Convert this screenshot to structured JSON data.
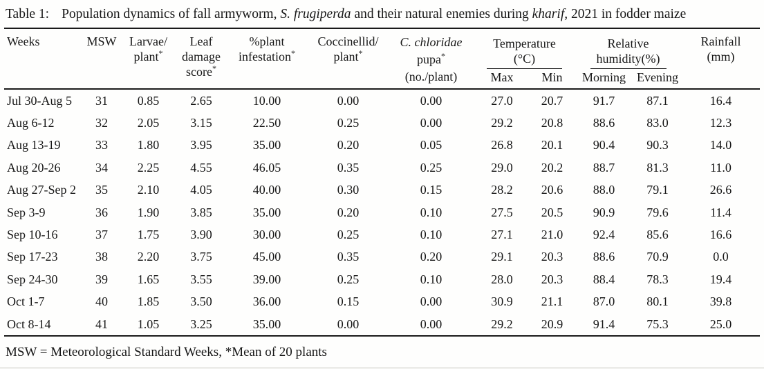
{
  "caption": {
    "label": "Table 1:",
    "segments": [
      {
        "text": "Population dynamics of fall armyworm, ",
        "italic": false
      },
      {
        "text": "S. frugiperda",
        "italic": true
      },
      {
        "text": " and their natural enemies during ",
        "italic": false
      },
      {
        "text": "kharif,",
        "italic": true
      },
      {
        "text": " 2021 in fodder maize",
        "italic": false
      }
    ]
  },
  "header": {
    "simple_columns": [
      {
        "id": "weeks",
        "lines": [
          "Weeks"
        ]
      },
      {
        "id": "msw",
        "lines": [
          "MSW"
        ]
      },
      {
        "id": "larvae-per-plant",
        "lines": [
          "Larvae/",
          "plant*"
        ]
      },
      {
        "id": "leaf-damage-score",
        "lines": [
          "Leaf",
          "damage",
          "score*"
        ]
      },
      {
        "id": "percent-plant-infestation",
        "lines": [
          "%plant",
          "infestation*"
        ]
      },
      {
        "id": "coccinellid-per-plant",
        "lines": [
          "Coccinellid/",
          "plant*"
        ]
      },
      {
        "id": "c-chloridae-pupa",
        "lines": [
          "C. chloridae",
          "pupa*",
          "(no./plant)"
        ],
        "italic_lines": [
          0
        ]
      }
    ],
    "groups": [
      {
        "id": "temperature",
        "lines": [
          "Temperature",
          "(°C)"
        ],
        "children": [
          {
            "id": "temp-max",
            "label": "Max"
          },
          {
            "id": "temp-min",
            "label": "Min"
          }
        ]
      },
      {
        "id": "relative-humidity",
        "lines": [
          "Relative",
          "humidity(%)"
        ],
        "children": [
          {
            "id": "rh-morning",
            "label": "Morning"
          },
          {
            "id": "rh-evening",
            "label": "Evening"
          }
        ]
      }
    ],
    "trailing_columns": [
      {
        "id": "rainfall",
        "lines": [
          "Rainfall",
          "(mm)"
        ]
      }
    ]
  },
  "chart_data": {
    "type": "table",
    "title": "Population dynamics of fall armyworm, S. frugiperda and their natural enemies during kharif, 2021 in fodder maize",
    "columns": [
      "Weeks",
      "MSW",
      "Larvae/plant*",
      "Leaf damage score*",
      "%plant infestation*",
      "Coccinellid/plant*",
      "C. chloridae pupa* (no./plant)",
      "Temperature (°C) Max",
      "Temperature (°C) Min",
      "Relative humidity(%) Morning",
      "Relative humidity(%) Evening",
      "Rainfall (mm)"
    ],
    "rows": [
      [
        "Jul 30-Aug 5",
        "31",
        "0.85",
        "2.65",
        "10.00",
        "0.00",
        "0.00",
        "27.0",
        "20.7",
        "91.7",
        "87.1",
        "16.4"
      ],
      [
        "Aug 6-12",
        "32",
        "2.05",
        "3.15",
        "22.50",
        "0.25",
        "0.00",
        "29.2",
        "20.8",
        "88.6",
        "83.0",
        "12.3"
      ],
      [
        "Aug 13-19",
        "33",
        "1.80",
        "3.95",
        "35.00",
        "0.20",
        "0.05",
        "26.8",
        "20.1",
        "90.4",
        "90.3",
        "14.0"
      ],
      [
        "Aug 20-26",
        "34",
        "2.25",
        "4.55",
        "46.05",
        "0.35",
        "0.25",
        "29.0",
        "20.2",
        "88.7",
        "81.3",
        "11.0"
      ],
      [
        "Aug 27-Sep 2",
        "35",
        "2.10",
        "4.05",
        "40.00",
        "0.30",
        "0.15",
        "28.2",
        "20.6",
        "88.0",
        "79.1",
        "26.6"
      ],
      [
        "Sep 3-9",
        "36",
        "1.90",
        "3.85",
        "35.00",
        "0.20",
        "0.10",
        "27.5",
        "20.5",
        "90.9",
        "79.6",
        "11.4"
      ],
      [
        "Sep 10-16",
        "37",
        "1.75",
        "3.90",
        "30.00",
        "0.25",
        "0.10",
        "27.1",
        "21.0",
        "92.4",
        "85.6",
        "16.6"
      ],
      [
        "Sep 17-23",
        "38",
        "2.20",
        "3.75",
        "45.00",
        "0.35",
        "0.20",
        "29.1",
        "20.3",
        "88.6",
        "70.9",
        "0.0"
      ],
      [
        "Sep 24-30",
        "39",
        "1.65",
        "3.55",
        "39.00",
        "0.25",
        "0.10",
        "28.0",
        "20.3",
        "88.4",
        "78.3",
        "19.4"
      ],
      [
        "Oct 1-7",
        "40",
        "1.85",
        "3.50",
        "36.00",
        "0.15",
        "0.00",
        "30.9",
        "21.1",
        "87.0",
        "80.1",
        "39.8"
      ],
      [
        "Oct 8-14",
        "41",
        "1.05",
        "3.25",
        "35.00",
        "0.00",
        "0.00",
        "29.2",
        "20.9",
        "91.4",
        "75.3",
        "25.0"
      ]
    ]
  },
  "footnote": "MSW = Meteorological Standard Weeks, *Mean of 20 plants"
}
